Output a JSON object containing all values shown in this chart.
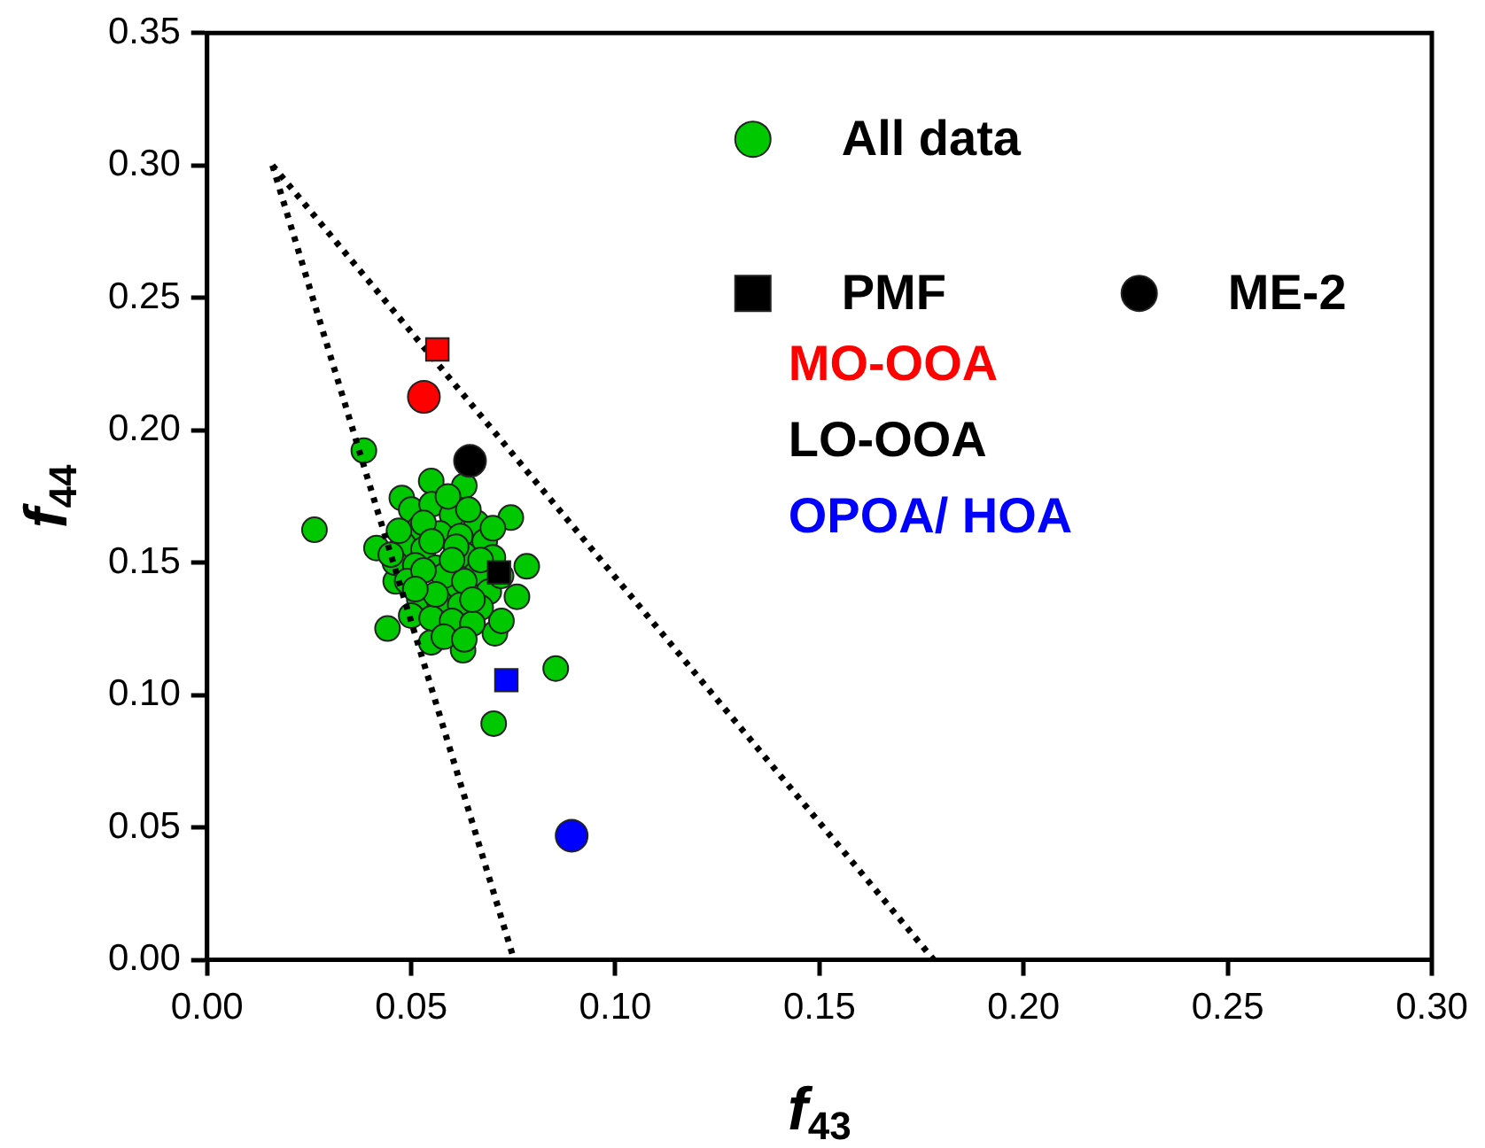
{
  "chart_data": {
    "type": "scatter",
    "xlabel": "f$_{43}$",
    "ylabel": "f$_{44}$",
    "xlim": [
      0,
      0.3
    ],
    "xticks": [
      {
        "value": 0,
        "label": "0.00"
      },
      {
        "value": 0.05,
        "label": "0.05"
      },
      {
        "value": 0.1,
        "label": "0.10"
      },
      {
        "value": 0.15,
        "label": "0.15"
      },
      {
        "value": 0.2,
        "label": "0.20"
      },
      {
        "value": 0.25,
        "label": "0.25"
      },
      {
        "value": 0.3,
        "label": "0.30"
      }
    ],
    "ylim": [
      0,
      0.35
    ],
    "yticks": [
      {
        "value": 0,
        "label": "0.00"
      },
      {
        "value": 0.05,
        "label": "0.05"
      },
      {
        "value": 0.1,
        "label": "0.10"
      },
      {
        "value": 0.15,
        "label": "0.15"
      },
      {
        "value": 0.2,
        "label": "0.20"
      },
      {
        "value": 0.25,
        "label": "0.25"
      },
      {
        "value": 0.3,
        "label": "0.30"
      },
      {
        "value": 0.35,
        "label": "0.35"
      }
    ],
    "grid": false,
    "legend": "top right",
    "annotations": [
      "MO-OOA",
      "LO-OOA",
      "OPOA/ HOA"
    ],
    "series": [
      {
        "name": "All data",
        "type": "scatter",
        "marker": "circle",
        "color": "#00c800",
        "x": [
          0.0384,
          0.0263,
          0.0442,
          0.0854,
          0.0702,
          0.063,
          0.0549,
          0.0744,
          0.0783,
          0.0415,
          0.0477,
          0.0705,
          0.0627,
          0.0549,
          0.0462,
          0.0759,
          0.0721,
          0.05,
          0.055,
          0.06,
          0.066,
          0.052,
          0.057,
          0.062,
          0.068,
          0.048,
          0.053,
          0.063,
          0.07,
          0.046,
          0.051,
          0.056,
          0.066,
          0.049,
          0.059,
          0.069,
          0.052,
          0.057,
          0.062,
          0.067,
          0.05,
          0.055,
          0.06,
          0.065,
          0.058,
          0.063,
          0.053,
          0.059,
          0.064,
          0.047,
          0.072,
          0.045,
          0.07,
          0.061,
          0.055,
          0.058,
          0.053,
          0.063,
          0.06,
          0.067,
          0.056,
          0.065,
          0.051
        ],
        "values": [
          0.1923,
          0.1624,
          0.1251,
          0.11,
          0.0892,
          0.179,
          0.1808,
          0.167,
          0.1486,
          0.1555,
          0.1744,
          0.1233,
          0.1169,
          0.1199,
          0.1429,
          0.1371,
          0.128,
          0.17,
          0.172,
          0.168,
          0.165,
          0.163,
          0.161,
          0.16,
          0.158,
          0.157,
          0.155,
          0.153,
          0.152,
          0.15,
          0.149,
          0.148,
          0.146,
          0.143,
          0.141,
          0.139,
          0.136,
          0.135,
          0.134,
          0.133,
          0.13,
          0.129,
          0.128,
          0.127,
          0.122,
          0.121,
          0.165,
          0.175,
          0.17,
          0.162,
          0.145,
          0.153,
          0.163,
          0.156,
          0.158,
          0.145,
          0.147,
          0.143,
          0.151,
          0.151,
          0.138,
          0.136,
          0.14
        ]
      },
      {
        "name": "PMF",
        "type": "scatter",
        "marker": "square",
        "color": "#000000",
        "colors": [
          "#ff0000",
          "#000000",
          "#0000ff"
        ],
        "x": [
          0.0564,
          0.0715,
          0.0733
        ],
        "values": [
          0.2305,
          0.1463,
          0.1056
        ]
      },
      {
        "name": "ME-2",
        "type": "scatter",
        "marker": "circle",
        "color": "#000000",
        "colors": [
          "#ff0000",
          "#000000",
          "#0000ff"
        ],
        "x": [
          0.0531,
          0.0644,
          0.0893
        ],
        "values": [
          0.2126,
          0.1884,
          0.0469
        ]
      },
      {
        "type": "line",
        "line_style": "dotted",
        "marker": "none",
        "color": "#000000",
        "x": [
          0.016,
          0.0752
        ],
        "values": [
          0.3,
          0
        ]
      },
      {
        "type": "line",
        "line_style": "dotted",
        "marker": "none",
        "color": "#000000",
        "x": [
          0.016,
          0.178
        ],
        "values": [
          0.3,
          0
        ]
      }
    ]
  }
}
